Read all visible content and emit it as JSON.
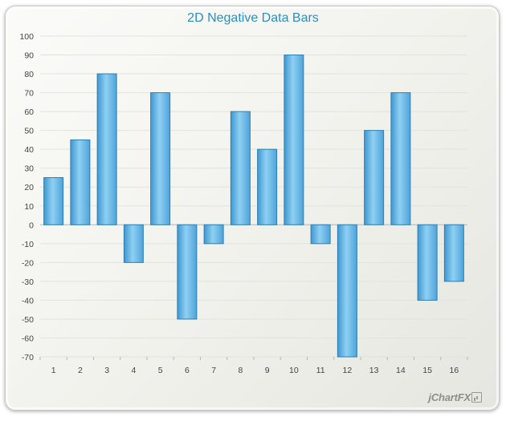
{
  "chart_data": {
    "type": "bar",
    "title": "2D Negative Data Bars",
    "xlabel": "",
    "ylabel": "",
    "categories": [
      "1",
      "2",
      "3",
      "4",
      "5",
      "6",
      "7",
      "8",
      "9",
      "10",
      "11",
      "12",
      "13",
      "14",
      "15",
      "16"
    ],
    "values": [
      25,
      45,
      80,
      -20,
      70,
      -50,
      -10,
      60,
      40,
      90,
      -10,
      -70,
      50,
      70,
      -40,
      -30
    ],
    "ylim": [
      -70,
      100
    ],
    "yticks": [
      100,
      90,
      80,
      70,
      60,
      50,
      40,
      30,
      20,
      10,
      0,
      -10,
      -20,
      -30,
      -40,
      -50,
      -60,
      -70
    ],
    "grid": true,
    "bar_color": "#5aade0",
    "bar_edge_color": "#2f7fae"
  },
  "branding": {
    "logo_text": "jChartFX"
  }
}
